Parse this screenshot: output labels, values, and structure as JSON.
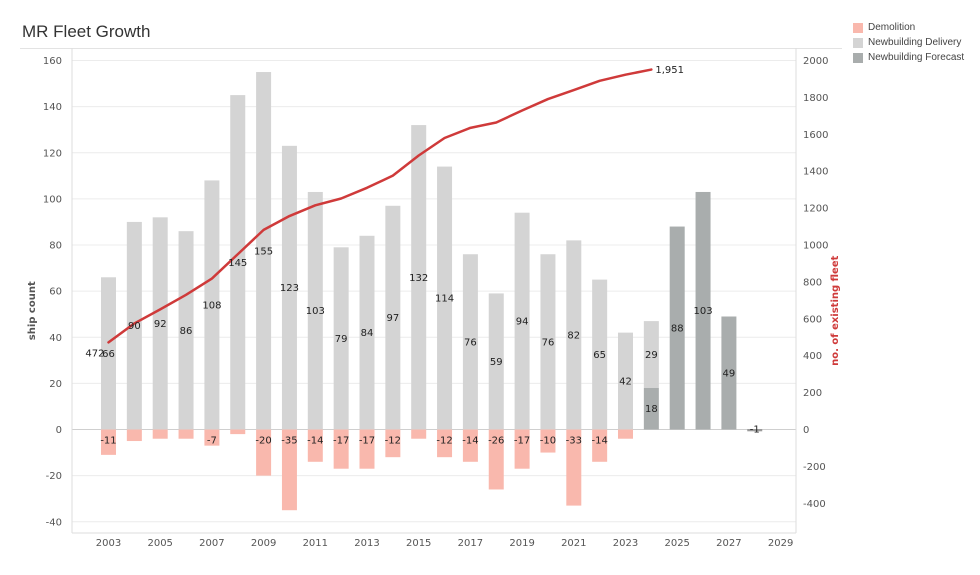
{
  "page": {
    "title": "MR Fleet Growth"
  },
  "colors": {
    "demolition": "#f9b8ad",
    "newbuilding_delivery": "#d4d4d4",
    "newbuilding_forecast": "#a9adad",
    "fleet_line": "#cf3a3a",
    "axis_text": "#555555",
    "grid": "#ececec"
  },
  "legend": {
    "items": [
      {
        "label": "Demolition",
        "color": "#f9b8ad"
      },
      {
        "label": "Newbuilding Delivery",
        "color": "#d4d4d4"
      },
      {
        "label": "Newbuilding Forecast",
        "color": "#a9adad"
      }
    ]
  },
  "chart_data": {
    "type": "bar",
    "title": "MR Fleet Growth",
    "xlabel": "",
    "ylabel": "ship count",
    "y2label": "no. of existing fleet",
    "ylim": [
      -45,
      160
    ],
    "y2lim": [
      -562.5,
      2000
    ],
    "yticks": [
      -40,
      -20,
      0,
      20,
      40,
      60,
      80,
      100,
      120,
      140,
      160
    ],
    "y2ticks": [
      -400,
      -200,
      0,
      200,
      400,
      600,
      800,
      1000,
      1200,
      1400,
      1600,
      1800,
      2000
    ],
    "years": [
      2003,
      2004,
      2005,
      2006,
      2007,
      2008,
      2009,
      2010,
      2011,
      2012,
      2013,
      2014,
      2015,
      2016,
      2017,
      2018,
      2019,
      2020,
      2021,
      2022,
      2023,
      2024,
      2025,
      2026,
      2027,
      2028
    ],
    "xtick_labels": [
      "2003",
      "2005",
      "2007",
      "2009",
      "2011",
      "2013",
      "2015",
      "2017",
      "2019",
      "2021",
      "2023",
      "2025",
      "2027",
      "2029"
    ],
    "series": [
      {
        "name": "Newbuilding Delivery",
        "values": [
          66,
          90,
          92,
          86,
          108,
          145,
          155,
          123,
          103,
          79,
          84,
          97,
          132,
          114,
          76,
          59,
          94,
          76,
          82,
          65,
          42,
          29,
          null,
          null,
          null,
          null
        ]
      },
      {
        "name": "Newbuilding Forecast",
        "values": [
          null,
          null,
          null,
          null,
          null,
          null,
          null,
          null,
          null,
          null,
          null,
          null,
          null,
          null,
          null,
          null,
          null,
          null,
          null,
          null,
          null,
          18,
          88,
          103,
          49,
          null
        ]
      },
      {
        "name": "Demolition",
        "values": [
          -11,
          -5,
          -4,
          -4,
          -7,
          -2,
          -20,
          -35,
          -14,
          -17,
          -17,
          -12,
          -4,
          -12,
          -14,
          -26,
          -17,
          -10,
          -33,
          -14,
          -4,
          null,
          null,
          null,
          null,
          -1
        ]
      },
      {
        "name": "no. of existing fleet",
        "axis": "right",
        "values": [
          472,
          575,
          651,
          730,
          818,
          950,
          1082,
          1157,
          1215,
          1252,
          1310,
          1376,
          1485,
          1580,
          1635,
          1664,
          1729,
          1791,
          1840,
          1890,
          1923,
          1951,
          null,
          null,
          null,
          null
        ]
      }
    ],
    "bar_labels": {
      "delivery": [
        "66",
        "90",
        "92",
        "86",
        "108",
        "145",
        "155",
        "123",
        "103",
        "79",
        "84",
        "97",
        "132",
        "114",
        "76",
        "59",
        "94",
        "76",
        "82",
        "65",
        "42",
        "29",
        "",
        "",
        "",
        ""
      ],
      "forecast": [
        "",
        "",
        "",
        "",
        "",
        "",
        "",
        "",
        "",
        "",
        "",
        "",
        "",
        "",
        "",
        "",
        "",
        "",
        "",
        "",
        "",
        "18",
        "88",
        "103",
        "49",
        ""
      ],
      "demolition": [
        "-11",
        "",
        "",
        "",
        "-7",
        "",
        "-20",
        "-35",
        "-14",
        "-17",
        "-17",
        "-12",
        "",
        "-12",
        "-14",
        "-26",
        "-17",
        "-10",
        "-33",
        "-14",
        "",
        "",
        "",
        "",
        "",
        "-1"
      ]
    },
    "line_labels": {
      "first": "472",
      "last": "1,951"
    }
  }
}
